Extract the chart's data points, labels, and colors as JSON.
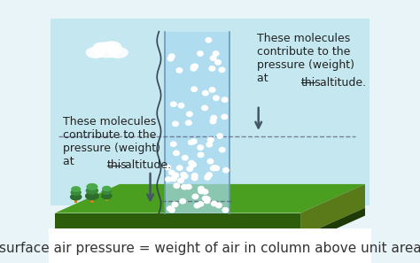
{
  "bg_color": "#e8f4f8",
  "title_text": "surface air pressure = weight of air in column above unit area",
  "title_fontsize": 11,
  "title_color": "#333333",
  "sky_color": "#c5e8f0",
  "ground_top_color": "#4a9e20",
  "ground_front_color": "#2d5c0a",
  "ground_side_color": "#5a7a1a",
  "ground_bottom_color": "#1e3a05",
  "column_color": "#a8d8f0",
  "column_alpha": 0.7,
  "dot_color": "#ffffff",
  "dashed_line_color": "#555577",
  "arrow_color": "#445566",
  "label_left": "These molecules\ncontribute to the\npressure (weight)\nat ",
  "label_right": "These molecules\ncontribute to the\npressure (weight)\nat ",
  "label_this": "this",
  "label_suffix": " altitude.",
  "label_fontsize": 9,
  "label_color": "#222222",
  "tree_trunk_color": "#c8821e",
  "tree_foliage_colors": [
    "#2d6e2d",
    "#3a8a3a",
    "#4aaa4a"
  ],
  "cloud_color": "#ffffff",
  "cloud_alpha": 0.9,
  "white_color": "#ffffff"
}
